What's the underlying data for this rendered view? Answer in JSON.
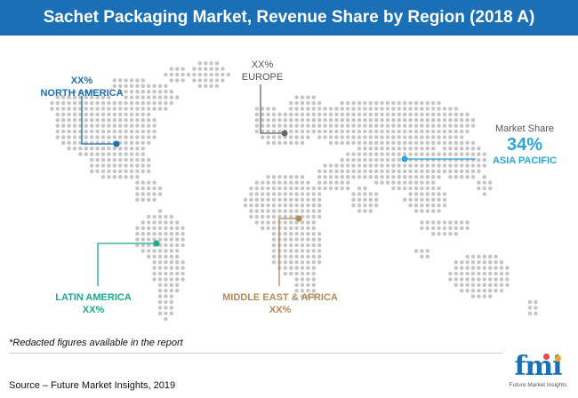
{
  "title": "Sachet Packaging Market, Revenue Share by Region (2018 A)",
  "regions": {
    "north_america": {
      "value": "XX%",
      "name": "NORTH AMERICA",
      "color": "#1d6fb3"
    },
    "europe": {
      "value": "XX%",
      "name": "EUROPE",
      "color": "#555555"
    },
    "asia_pacific": {
      "caption": "Market Share",
      "value": "34%",
      "name": "ASIA PACIFIC",
      "color": "#29a6d6"
    },
    "latin_america": {
      "name": "LATIN AMERICA",
      "value": "XX%",
      "color": "#1ca98c"
    },
    "middle_east_africa": {
      "name": "MIDDLE EAST & AFRICA",
      "value": "XX%",
      "color": "#b58a57"
    }
  },
  "footnote": "*Redacted figures available in the report",
  "source": "Source – Future Market Insights, 2019",
  "logo": {
    "mark": "fmi",
    "tagline": "Future Market Insights"
  }
}
